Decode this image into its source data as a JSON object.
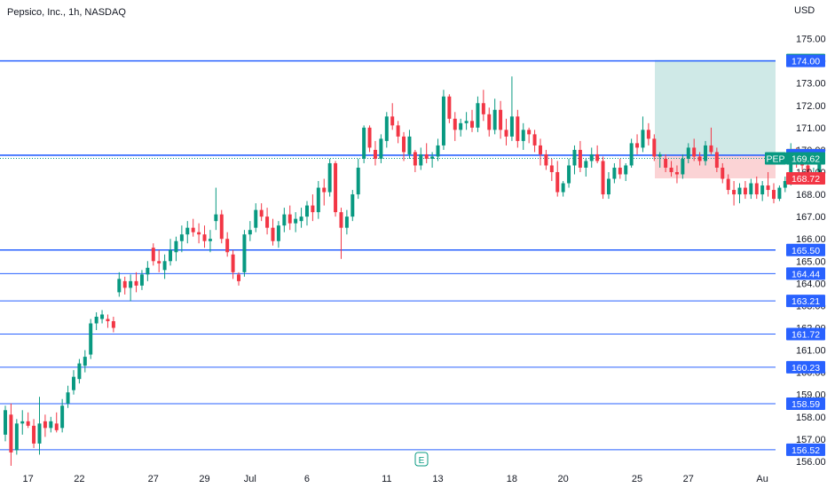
{
  "header": {
    "title": "Pepsico, Inc., 1h, NASDAQ",
    "currency": "USD"
  },
  "colors": {
    "up": "#089981",
    "down": "#f23645",
    "level_line": "#2962ff",
    "tp_zone": "#cfe9e7",
    "sl_zone": "#fbd3d5",
    "tag_blue": "#2962ff",
    "tag_green": "#089981",
    "tag_red": "#f23645",
    "tag_gray": "#787b86"
  },
  "chart_data": {
    "type": "candlestick",
    "title": "Pepsico, Inc., 1h, NASDAQ",
    "ylabel": "USD",
    "ylim": [
      155.4,
      175.7
    ],
    "y_ticks": [
      156,
      157,
      158,
      159,
      160,
      161,
      162,
      163,
      164,
      165,
      166,
      167,
      168,
      169,
      170,
      171,
      172,
      173,
      174,
      175
    ],
    "y_tick_labels": [
      "156.00",
      "157.00",
      "158.00",
      "159.00",
      "160.00",
      "161.00",
      "162.00",
      "163.00",
      "164.00",
      "165.00",
      "166.00",
      "167.00",
      "168.00",
      "169.00",
      "170.00",
      "171.00",
      "172.00",
      "173.00",
      "174.00",
      "175.00"
    ],
    "x_ticks": [
      {
        "label": "17",
        "i": 4
      },
      {
        "label": "22",
        "i": 13
      },
      {
        "label": "27",
        "i": 26
      },
      {
        "label": "29",
        "i": 35
      },
      {
        "label": "Jul",
        "i": 43
      },
      {
        "label": "6",
        "i": 53
      },
      {
        "label": "11",
        "i": 67
      },
      {
        "label": "13",
        "i": 76
      },
      {
        "label": "18",
        "i": 89
      },
      {
        "label": "20",
        "i": 98
      },
      {
        "label": "25",
        "i": 111
      },
      {
        "label": "27",
        "i": 120
      },
      {
        "label": "Au",
        "i": 133
      }
    ],
    "x_range": [
      0,
      135
    ],
    "ohlc": [
      [
        157.2,
        158.5,
        156.9,
        158.3
      ],
      [
        158.1,
        158.6,
        155.8,
        156.4
      ],
      [
        156.5,
        157.9,
        156.3,
        157.7
      ],
      [
        157.7,
        158.3,
        157.2,
        157.8
      ],
      [
        157.8,
        158.2,
        157.5,
        157.6
      ],
      [
        157.6,
        157.9,
        156.6,
        156.8
      ],
      [
        156.8,
        158.9,
        156.3,
        157.7
      ],
      [
        157.8,
        158.1,
        157.1,
        157.5
      ],
      [
        157.5,
        158.0,
        157.3,
        157.8
      ],
      [
        157.7,
        158.2,
        157.3,
        157.4
      ],
      [
        157.5,
        158.8,
        157.3,
        158.5
      ],
      [
        158.6,
        159.4,
        158.4,
        159.1
      ],
      [
        159.2,
        160.1,
        159.0,
        159.8
      ],
      [
        159.7,
        160.6,
        159.5,
        160.4
      ],
      [
        160.3,
        161.0,
        160.0,
        160.7
      ],
      [
        160.8,
        162.4,
        160.6,
        162.2
      ],
      [
        162.2,
        162.7,
        161.9,
        162.5
      ],
      [
        162.4,
        162.8,
        162.2,
        162.6
      ],
      [
        162.4,
        162.6,
        162.0,
        162.3
      ],
      [
        162.3,
        162.5,
        161.8,
        162.0
      ],
      [
        163.6,
        164.5,
        163.4,
        164.2
      ],
      [
        164.1,
        164.3,
        163.5,
        163.8
      ],
      [
        163.8,
        164.4,
        163.2,
        164.1
      ],
      [
        164.1,
        164.5,
        163.6,
        163.9
      ],
      [
        163.9,
        164.6,
        163.7,
        164.4
      ],
      [
        164.4,
        165.0,
        164.1,
        164.7
      ],
      [
        165.6,
        165.8,
        164.8,
        165.0
      ],
      [
        165.0,
        165.5,
        164.5,
        164.9
      ],
      [
        164.6,
        165.3,
        164.2,
        165.0
      ],
      [
        165.0,
        166.0,
        164.8,
        165.5
      ],
      [
        165.4,
        166.1,
        165.0,
        165.9
      ],
      [
        165.9,
        166.6,
        165.4,
        166.2
      ],
      [
        166.2,
        166.8,
        165.8,
        166.5
      ],
      [
        166.5,
        166.9,
        166.1,
        166.3
      ],
      [
        166.3,
        166.7,
        165.8,
        166.2
      ],
      [
        166.2,
        166.6,
        165.6,
        165.9
      ],
      [
        165.9,
        166.4,
        165.4,
        166.0
      ],
      [
        166.8,
        168.3,
        166.4,
        167.1
      ],
      [
        167.1,
        167.3,
        165.8,
        166.0
      ],
      [
        166.0,
        166.3,
        165.2,
        165.4
      ],
      [
        165.3,
        165.5,
        164.2,
        164.5
      ],
      [
        164.4,
        164.5,
        163.9,
        164.1
      ],
      [
        164.5,
        166.4,
        164.3,
        166.2
      ],
      [
        166.2,
        166.8,
        165.9,
        166.4
      ],
      [
        166.5,
        167.6,
        166.3,
        167.3
      ],
      [
        167.3,
        167.6,
        166.8,
        167.0
      ],
      [
        167.0,
        167.4,
        166.2,
        166.5
      ],
      [
        166.5,
        166.9,
        165.7,
        165.9
      ],
      [
        165.9,
        166.8,
        165.6,
        166.6
      ],
      [
        166.6,
        167.4,
        166.3,
        167.1
      ],
      [
        167.1,
        167.5,
        166.4,
        166.7
      ],
      [
        166.7,
        167.2,
        166.3,
        166.9
      ],
      [
        166.8,
        167.4,
        166.5,
        167.0
      ],
      [
        167.0,
        167.7,
        166.6,
        167.5
      ],
      [
        167.5,
        168.0,
        166.8,
        167.2
      ],
      [
        167.2,
        168.6,
        166.9,
        168.3
      ],
      [
        168.3,
        168.7,
        167.5,
        168.1
      ],
      [
        168.1,
        169.6,
        167.9,
        169.4
      ],
      [
        169.4,
        169.5,
        167.0,
        167.2
      ],
      [
        167.2,
        167.4,
        165.1,
        166.5
      ],
      [
        166.5,
        167.3,
        166.2,
        167.0
      ],
      [
        167.0,
        168.2,
        166.8,
        168.0
      ],
      [
        168.0,
        169.6,
        167.8,
        169.2
      ],
      [
        169.6,
        171.1,
        169.4,
        171.0
      ],
      [
        171.0,
        171.1,
        169.9,
        170.1
      ],
      [
        170.0,
        170.4,
        169.3,
        169.6
      ],
      [
        169.6,
        170.7,
        169.4,
        170.5
      ],
      [
        170.4,
        171.7,
        170.1,
        171.5
      ],
      [
        171.5,
        172.1,
        170.9,
        171.1
      ],
      [
        171.1,
        171.3,
        170.3,
        170.6
      ],
      [
        170.6,
        170.8,
        169.5,
        169.9
      ],
      [
        169.8,
        170.9,
        169.6,
        170.6
      ],
      [
        169.9,
        170.0,
        169.0,
        169.3
      ],
      [
        169.3,
        170.1,
        169.1,
        169.8
      ],
      [
        169.8,
        170.3,
        169.4,
        169.6
      ],
      [
        169.6,
        169.9,
        169.2,
        169.7
      ],
      [
        169.7,
        170.5,
        169.5,
        170.2
      ],
      [
        170.2,
        172.7,
        170.0,
        172.4
      ],
      [
        172.4,
        172.5,
        171.2,
        171.4
      ],
      [
        171.4,
        171.7,
        170.4,
        170.9
      ],
      [
        170.9,
        171.4,
        170.6,
        171.2
      ],
      [
        171.2,
        171.7,
        170.9,
        171.3
      ],
      [
        171.3,
        171.8,
        170.8,
        171.0
      ],
      [
        171.0,
        172.4,
        170.8,
        172.1
      ],
      [
        172.1,
        172.7,
        171.3,
        171.6
      ],
      [
        171.6,
        171.9,
        170.6,
        170.9
      ],
      [
        170.9,
        172.3,
        170.7,
        171.8
      ],
      [
        171.8,
        172.2,
        170.5,
        170.9
      ],
      [
        170.9,
        171.4,
        170.2,
        170.6
      ],
      [
        170.6,
        173.3,
        170.4,
        171.5
      ],
      [
        171.5,
        171.8,
        170.1,
        170.4
      ],
      [
        170.4,
        171.2,
        170.0,
        170.9
      ],
      [
        170.9,
        171.0,
        170.3,
        170.7
      ],
      [
        170.7,
        170.9,
        169.9,
        170.2
      ],
      [
        170.2,
        170.5,
        169.3,
        169.8
      ],
      [
        169.8,
        170.0,
        169.1,
        169.3
      ],
      [
        169.3,
        169.6,
        168.6,
        169.0
      ],
      [
        169.0,
        169.5,
        167.9,
        168.1
      ],
      [
        168.1,
        168.6,
        167.9,
        168.5
      ],
      [
        168.5,
        169.6,
        168.3,
        169.3
      ],
      [
        169.3,
        170.2,
        168.9,
        170.0
      ],
      [
        170.0,
        170.4,
        169.0,
        169.2
      ],
      [
        169.2,
        169.6,
        168.8,
        169.5
      ],
      [
        169.5,
        170.1,
        169.2,
        169.8
      ],
      [
        169.8,
        170.2,
        169.4,
        169.5
      ],
      [
        169.5,
        169.7,
        167.8,
        168.0
      ],
      [
        168.0,
        169.0,
        167.8,
        168.7
      ],
      [
        168.7,
        169.4,
        168.5,
        169.2
      ],
      [
        169.2,
        169.6,
        168.7,
        168.9
      ],
      [
        168.9,
        169.4,
        168.6,
        169.3
      ],
      [
        169.3,
        170.5,
        169.2,
        170.3
      ],
      [
        170.3,
        170.7,
        169.8,
        170.1
      ],
      [
        170.1,
        171.5,
        169.9,
        170.9
      ],
      [
        170.9,
        171.2,
        170.2,
        170.5
      ],
      [
        170.5,
        170.7,
        169.5,
        169.7
      ],
      [
        169.7,
        169.9,
        169.2,
        169.8
      ],
      [
        169.6,
        169.8,
        169.0,
        169.2
      ],
      [
        169.2,
        169.5,
        168.8,
        169.0
      ],
      [
        169.0,
        169.3,
        168.5,
        168.9
      ],
      [
        168.9,
        169.8,
        168.7,
        169.6
      ],
      [
        169.6,
        170.3,
        169.4,
        170.1
      ],
      [
        170.1,
        170.5,
        169.5,
        169.7
      ],
      [
        169.7,
        169.9,
        169.3,
        169.5
      ],
      [
        169.5,
        170.4,
        169.3,
        170.2
      ],
      [
        170.2,
        171.0,
        169.8,
        169.9
      ],
      [
        169.9,
        170.1,
        169.0,
        169.2
      ],
      [
        169.2,
        169.4,
        168.5,
        168.7
      ],
      [
        168.7,
        168.9,
        168.0,
        168.2
      ],
      [
        168.2,
        168.6,
        167.5,
        168.0
      ],
      [
        168.0,
        168.5,
        167.6,
        168.3
      ],
      [
        168.3,
        168.6,
        167.8,
        168.0
      ],
      [
        168.0,
        168.7,
        167.8,
        168.5
      ],
      [
        168.5,
        168.8,
        167.8,
        168.0
      ],
      [
        168.0,
        168.6,
        167.7,
        168.4
      ],
      [
        168.4,
        169.0,
        167.9,
        168.2
      ],
      [
        168.2,
        168.5,
        167.6,
        167.8
      ],
      [
        167.8,
        168.4,
        167.7,
        168.3
      ],
      [
        168.3,
        168.8,
        168.1,
        168.6
      ],
      [
        168.6,
        170.3,
        168.4,
        169.9
      ],
      [
        169.9,
        170.1,
        169.2,
        169.5
      ],
      [
        169.5,
        169.8,
        169.1,
        169.3
      ],
      [
        169.3,
        169.4,
        168.5,
        168.7
      ],
      [
        168.7,
        169.2,
        168.6,
        169.0
      ],
      [
        169.0,
        169.8,
        168.9,
        169.6
      ]
    ],
    "levels": [
      174.0,
      169.76,
      165.5,
      164.44,
      163.21,
      161.72,
      160.23,
      158.59,
      156.52
    ],
    "last_price": 169.62,
    "trade_position": {
      "target": 174.04,
      "entry": 169.77,
      "stop": 168.72
    },
    "price_tags": [
      {
        "label": "174.04",
        "value": 174.04,
        "color": "tag_green"
      },
      {
        "label": "174.00",
        "value": 174.0,
        "color": "tag_blue"
      },
      {
        "label": "169.77",
        "value": 169.77,
        "color": "tag_gray"
      },
      {
        "label": "169.76",
        "value": 169.76,
        "color": "tag_blue"
      },
      {
        "label": "169.62",
        "value": 169.62,
        "color": "tag_green",
        "symbol": "PEP"
      },
      {
        "label": "168.72",
        "value": 168.72,
        "color": "tag_red"
      },
      {
        "label": "165.50",
        "value": 165.5,
        "color": "tag_blue"
      },
      {
        "label": "164.44",
        "value": 164.44,
        "color": "tag_blue"
      },
      {
        "label": "163.21",
        "value": 163.21,
        "color": "tag_blue"
      },
      {
        "label": "161.72",
        "value": 161.72,
        "color": "tag_blue"
      },
      {
        "label": "160.23",
        "value": 160.23,
        "color": "tag_blue"
      },
      {
        "label": "158.59",
        "value": 158.59,
        "color": "tag_blue"
      },
      {
        "label": "156.52",
        "value": 156.52,
        "color": "tag_blue"
      }
    ],
    "earnings_marker": "E"
  }
}
